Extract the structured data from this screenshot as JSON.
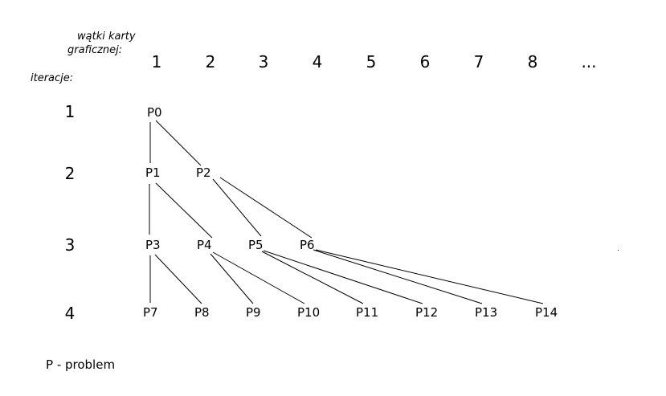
{
  "header": {
    "threads_label_line1": "wątki karty",
    "threads_label_line2": "graficznej:",
    "iterations_label": "iteracje:"
  },
  "columns": [
    "1",
    "2",
    "3",
    "4",
    "5",
    "6",
    "7",
    "8",
    "..."
  ],
  "rows": [
    "1",
    "2",
    "3",
    "4"
  ],
  "nodes": [
    {
      "id": "P0",
      "label": "P0"
    },
    {
      "id": "P1",
      "label": "P1"
    },
    {
      "id": "P2",
      "label": "P2"
    },
    {
      "id": "P3",
      "label": "P3"
    },
    {
      "id": "P4",
      "label": "P4"
    },
    {
      "id": "P5",
      "label": "P5"
    },
    {
      "id": "P6",
      "label": "P6"
    },
    {
      "id": "P7",
      "label": "P7"
    },
    {
      "id": "P8",
      "label": "P8"
    },
    {
      "id": "P9",
      "label": "P9"
    },
    {
      "id": "P10",
      "label": "P10"
    },
    {
      "id": "P11",
      "label": "P11"
    },
    {
      "id": "P12",
      "label": "P12"
    },
    {
      "id": "P13",
      "label": "P13"
    },
    {
      "id": "P14",
      "label": "P14"
    }
  ],
  "edges": [
    {
      "from": "P0",
      "to": "P1"
    },
    {
      "from": "P0",
      "to": "P2"
    },
    {
      "from": "P1",
      "to": "P3"
    },
    {
      "from": "P1",
      "to": "P4"
    },
    {
      "from": "P2",
      "to": "P5"
    },
    {
      "from": "P2",
      "to": "P6"
    },
    {
      "from": "P3",
      "to": "P7"
    },
    {
      "from": "P3",
      "to": "P8"
    },
    {
      "from": "P4",
      "to": "P9"
    },
    {
      "from": "P4",
      "to": "P10"
    },
    {
      "from": "P5",
      "to": "P11"
    },
    {
      "from": "P5",
      "to": "P12"
    },
    {
      "from": "P6",
      "to": "P13"
    },
    {
      "from": "P6",
      "to": "P14"
    }
  ],
  "legend": "P - problem"
}
